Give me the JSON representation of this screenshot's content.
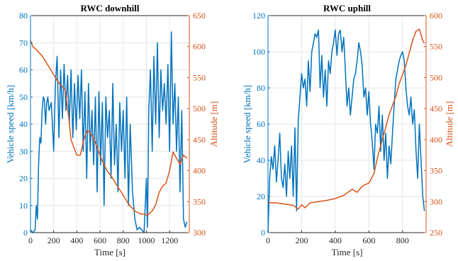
{
  "colors": {
    "speed": "#0072BD",
    "altitude": "#D95319",
    "grid": "#e6e6e6",
    "axis": "#262626"
  },
  "chart_data": [
    {
      "type": "line",
      "title": "RWC downhill",
      "xlabel": "Time [s]",
      "ylabel_left": "Vehicle speed [km/h]",
      "ylabel_right": "Altitude [m]",
      "xlim": [
        0,
        1370
      ],
      "ylim_left": [
        0,
        80
      ],
      "ylim_right": [
        300,
        650
      ],
      "xticks": [
        0,
        200,
        400,
        600,
        800,
        1000,
        1200
      ],
      "xtick_labels": [
        "0",
        "200",
        "400",
        "600",
        "800",
        "1000",
        "1200"
      ],
      "yticks_left": [
        0,
        10,
        20,
        30,
        40,
        50,
        60,
        70,
        80
      ],
      "ytick_labels_left": [
        "0",
        "10",
        "20",
        "30",
        "40",
        "50",
        "60",
        "70",
        "80"
      ],
      "yticks_right": [
        300,
        350,
        400,
        450,
        500,
        550,
        600,
        650
      ],
      "ytick_labels_right": [
        "300",
        "350",
        "400",
        "450",
        "500",
        "550",
        "600",
        "650"
      ],
      "grid": true,
      "series": [
        {
          "axis": "left",
          "x": [
            0,
            20,
            40,
            50,
            60,
            70,
            80,
            90,
            100,
            110,
            120,
            130,
            140,
            150,
            160,
            180,
            200,
            215,
            230,
            245,
            260,
            275,
            290,
            305,
            320,
            335,
            350,
            365,
            380,
            395,
            410,
            425,
            440,
            455,
            470,
            485,
            500,
            515,
            530,
            545,
            560,
            575,
            590,
            605,
            620,
            635,
            650,
            665,
            680,
            695,
            710,
            725,
            740,
            755,
            770,
            785,
            800,
            815,
            830,
            845,
            860,
            880,
            900,
            920,
            940,
            960,
            980,
            1000,
            1010,
            1020,
            1035,
            1050,
            1065,
            1080,
            1095,
            1110,
            1125,
            1140,
            1155,
            1170,
            1185,
            1200,
            1215,
            1230,
            1245,
            1260,
            1275,
            1290,
            1305,
            1320,
            1335,
            1350
          ],
          "y": [
            1,
            0,
            1,
            10,
            5,
            25,
            35,
            33,
            45,
            50,
            49,
            40,
            48,
            50,
            45,
            48,
            30,
            55,
            65,
            35,
            60,
            42,
            62,
            45,
            58,
            40,
            60,
            35,
            55,
            38,
            58,
            42,
            60,
            30,
            52,
            20,
            55,
            30,
            45,
            25,
            50,
            15,
            52,
            25,
            48,
            10,
            50,
            35,
            45,
            20,
            55,
            25,
            40,
            15,
            48,
            30,
            45,
            20,
            50,
            10,
            40,
            15,
            5,
            1,
            2,
            1,
            0,
            20,
            2,
            45,
            60,
            30,
            65,
            40,
            70,
            35,
            60,
            45,
            55,
            40,
            62,
            30,
            74,
            40,
            55,
            30,
            50,
            15,
            45,
            5,
            2,
            4
          ]
        },
        {
          "axis": "right",
          "x": [
            0,
            20,
            50,
            100,
            150,
            200,
            250,
            300,
            330,
            350,
            380,
            400,
            430,
            460,
            490,
            520,
            550,
            580,
            620,
            660,
            700,
            750,
            800,
            850,
            900,
            950,
            980,
            1000,
            1020,
            1050,
            1080,
            1110,
            1140,
            1170,
            1200,
            1230,
            1260,
            1290,
            1320,
            1350
          ],
          "y": [
            610,
            600,
            595,
            585,
            570,
            555,
            540,
            530,
            485,
            450,
            435,
            425,
            425,
            450,
            465,
            460,
            450,
            435,
            415,
            400,
            390,
            375,
            360,
            345,
            335,
            330,
            330,
            328,
            330,
            335,
            345,
            365,
            375,
            380,
            400,
            430,
            420,
            410,
            425,
            420
          ]
        }
      ]
    },
    {
      "type": "line",
      "title": "RWC uphill",
      "xlabel": "Time [s]",
      "ylabel_left": "Vehicle speed [km/h]",
      "ylabel_right": "Altitude [m]",
      "xlim": [
        0,
        940
      ],
      "ylim_left": [
        0,
        120
      ],
      "ylim_right": [
        250,
        600
      ],
      "xticks": [
        0,
        200,
        400,
        600,
        800
      ],
      "xtick_labels": [
        "0",
        "200",
        "400",
        "600",
        "800"
      ],
      "yticks_left": [
        0,
        20,
        40,
        60,
        80,
        100,
        120
      ],
      "ytick_labels_left": [
        "0",
        "20",
        "40",
        "60",
        "80",
        "100",
        "120"
      ],
      "yticks_right": [
        250,
        300,
        350,
        400,
        450,
        500,
        550,
        600
      ],
      "ytick_labels_right": [
        "250",
        "300",
        "350",
        "400",
        "450",
        "500",
        "550",
        "600"
      ],
      "grid": true,
      "series": [
        {
          "axis": "left",
          "x": [
            0,
            10,
            20,
            30,
            40,
            50,
            60,
            70,
            80,
            90,
            100,
            110,
            120,
            130,
            140,
            150,
            160,
            170,
            180,
            190,
            200,
            210,
            220,
            230,
            240,
            250,
            260,
            270,
            280,
            290,
            300,
            310,
            320,
            330,
            340,
            350,
            360,
            370,
            380,
            390,
            400,
            410,
            420,
            430,
            440,
            450,
            460,
            470,
            480,
            490,
            500,
            510,
            520,
            530,
            540,
            550,
            560,
            570,
            580,
            590,
            600,
            610,
            620,
            630,
            640,
            650,
            660,
            670,
            680,
            690,
            700,
            710,
            720,
            730,
            740,
            750,
            760,
            770,
            780,
            790,
            800,
            810,
            820,
            830,
            840,
            850,
            860,
            870,
            880,
            890,
            900,
            910,
            920,
            930
          ],
          "y": [
            0,
            30,
            42,
            35,
            48,
            28,
            40,
            55,
            30,
            25,
            38,
            20,
            45,
            30,
            48,
            20,
            58,
            12,
            62,
            75,
            88,
            80,
            85,
            70,
            95,
            78,
            100,
            105,
            110,
            108,
            112,
            80,
            98,
            75,
            90,
            70,
            95,
            88,
            100,
            105,
            112,
            98,
            110,
            112,
            100,
            108,
            90,
            70,
            80,
            65,
            75,
            85,
            88,
            95,
            105,
            100,
            92,
            75,
            80,
            65,
            78,
            60,
            50,
            35,
            60,
            55,
            70,
            45,
            65,
            40,
            55,
            30,
            48,
            38,
            55,
            70,
            85,
            90,
            95,
            98,
            100,
            95,
            80,
            70,
            65,
            75,
            60,
            68,
            45,
            30,
            60,
            40,
            20,
            12
          ]
        },
        {
          "axis": "right",
          "x": [
            0,
            50,
            100,
            150,
            180,
            200,
            220,
            250,
            300,
            350,
            400,
            450,
            500,
            530,
            560,
            600,
            630,
            650,
            680,
            700,
            720,
            740,
            760,
            780,
            800,
            820,
            840,
            860,
            880,
            900,
            920,
            930
          ],
          "y": [
            298,
            298,
            296,
            294,
            288,
            295,
            290,
            298,
            300,
            302,
            305,
            310,
            320,
            315,
            325,
            330,
            345,
            370,
            400,
            420,
            440,
            455,
            470,
            490,
            505,
            520,
            540,
            560,
            575,
            578,
            560,
            555
          ]
        }
      ]
    }
  ]
}
